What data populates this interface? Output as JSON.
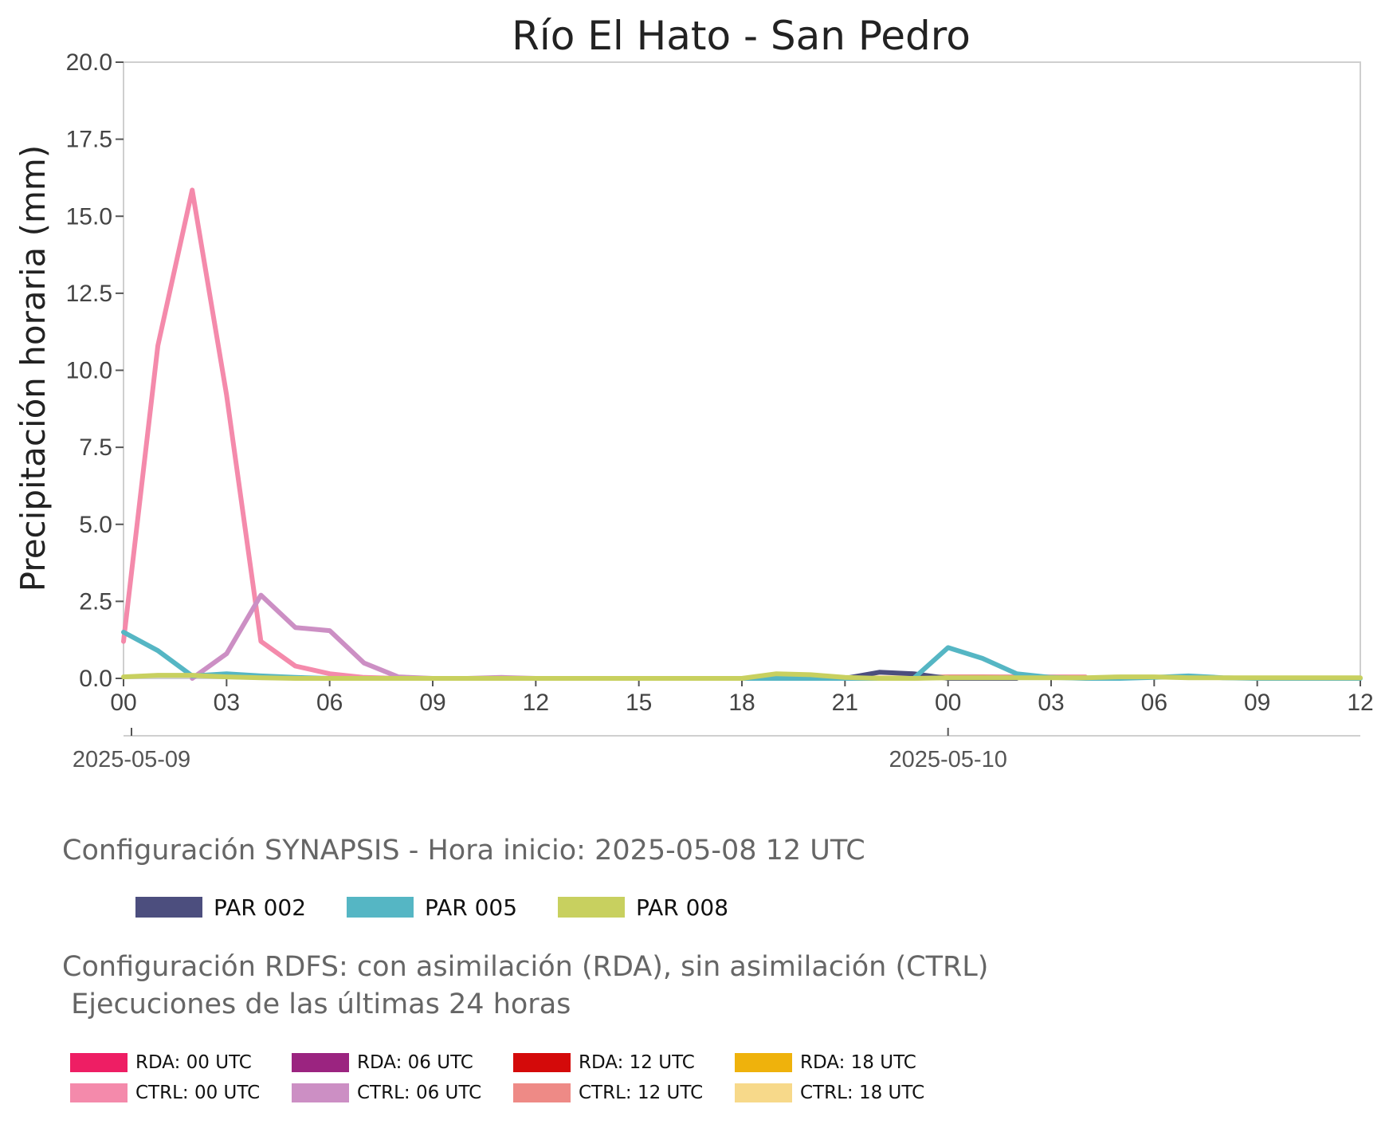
{
  "chart_data": {
    "type": "line",
    "title": "Río El Hato - San Pedro",
    "ylabel": "Precipitación horaria (mm)",
    "xlabel": "",
    "ylim": [
      0,
      20
    ],
    "yticks": [
      "0.0",
      "2.5",
      "5.0",
      "7.5",
      "10.0",
      "12.5",
      "15.0",
      "17.5",
      "20.0"
    ],
    "xlim_hours": [
      0,
      36
    ],
    "xtick_labels": [
      "00",
      "03",
      "06",
      "09",
      "12",
      "15",
      "18",
      "21",
      "00",
      "03",
      "06",
      "09",
      "12"
    ],
    "date_labels": [
      "2025-05-09",
      "2025-05-10"
    ],
    "grid": false,
    "series": [
      {
        "name": "CTRL: 00 UTC",
        "color": "#f48aab",
        "x": [
          0,
          1,
          2,
          3,
          4,
          5,
          6,
          7,
          8,
          9,
          10,
          11,
          12,
          13,
          14,
          15,
          16,
          17,
          18,
          19,
          20,
          21,
          22,
          23,
          24,
          25,
          26,
          27,
          28
        ],
        "values": [
          1.2,
          10.8,
          15.85,
          9.2,
          1.2,
          0.4,
          0.15,
          0.03,
          0,
          0,
          0,
          0,
          0,
          0,
          0,
          0,
          0,
          0,
          0,
          0,
          0,
          0,
          0,
          0,
          0.05,
          0.05,
          0.05,
          0.05,
          0.05
        ]
      },
      {
        "name": "CTRL: 06 UTC",
        "color": "#cc8fc4",
        "x": [
          2,
          3,
          4,
          5,
          6,
          7,
          8,
          9,
          10,
          11,
          12,
          13,
          14,
          15,
          16
        ],
        "values": [
          0,
          0.8,
          2.7,
          1.65,
          1.55,
          0.5,
          0.05,
          0,
          0,
          0.03,
          0,
          0,
          0,
          0,
          0
        ]
      },
      {
        "name": "CTRL: 12 UTC",
        "color": "#ee8a86",
        "x": [
          16,
          17,
          18,
          19,
          20,
          21,
          22,
          23,
          24,
          25,
          26,
          27,
          28
        ],
        "values": [
          0,
          0,
          0,
          0,
          0,
          0,
          0,
          0.03,
          0.05,
          0.05,
          0.03,
          0.03,
          0.03
        ]
      },
      {
        "name": "CTRL: 18 UTC",
        "color": "#f7d98a",
        "x": [
          18,
          19,
          20,
          21,
          22,
          23,
          24
        ],
        "values": [
          0,
          0.08,
          0.06,
          0.02,
          0.02,
          0.02,
          0.02
        ]
      },
      {
        "name": "PAR 002",
        "color": "#4c4e7e",
        "x": [
          18,
          19,
          20,
          21,
          22,
          23,
          24,
          25,
          26
        ],
        "values": [
          0,
          0,
          0,
          0,
          0.2,
          0.15,
          0,
          0,
          0
        ]
      },
      {
        "name": "PAR 005",
        "color": "#55b6c4",
        "x": [
          0,
          1,
          2,
          3,
          4,
          5,
          6,
          7,
          8,
          9,
          10,
          11,
          12,
          13,
          14,
          15,
          16,
          17,
          18,
          19,
          20,
          21,
          22,
          23,
          24,
          25,
          26,
          27,
          28,
          29,
          30,
          31,
          32,
          33,
          34,
          35,
          36
        ],
        "values": [
          1.5,
          0.9,
          0.08,
          0.15,
          0.08,
          0.03,
          0,
          0,
          0,
          0,
          0,
          0,
          0,
          0,
          0,
          0,
          0,
          0,
          0,
          0,
          0,
          0,
          0,
          0,
          1.0,
          0.65,
          0.15,
          0.03,
          0,
          0,
          0.03,
          0.08,
          0.02,
          0,
          0,
          0,
          0
        ]
      },
      {
        "name": "PAR 008",
        "color": "#c8d05f",
        "x": [
          0,
          1,
          2,
          3,
          4,
          5,
          6,
          7,
          8,
          9,
          10,
          11,
          12,
          13,
          14,
          15,
          16,
          17,
          18,
          19,
          20,
          21,
          22,
          23,
          24,
          25,
          26,
          27,
          28,
          29,
          30,
          31,
          32,
          33,
          34,
          35,
          36
        ],
        "values": [
          0.05,
          0.1,
          0.1,
          0.05,
          0.02,
          0,
          0,
          0,
          0,
          0,
          0,
          0,
          0,
          0,
          0,
          0,
          0,
          0,
          0,
          0.15,
          0.12,
          0.03,
          0,
          0,
          0.02,
          0.02,
          0.02,
          0.02,
          0.02,
          0.05,
          0.05,
          0.02,
          0.02,
          0.02,
          0.02,
          0.02,
          0.02
        ]
      }
    ]
  },
  "synapsis": {
    "heading": "Configuración SYNAPSIS - Hora inicio: 2025-05-08 12 UTC",
    "items": [
      {
        "label": "PAR 002",
        "color": "#4c4e7e"
      },
      {
        "label": "PAR 005",
        "color": "#55b6c4"
      },
      {
        "label": "PAR 008",
        "color": "#c8d05f"
      }
    ]
  },
  "rdfs": {
    "heading": "Configuración RDFS: con asimilación (RDA), sin asimilación (CTRL)\n Ejecuciones de las últimas 24 horas",
    "items": [
      {
        "label": "RDA: 00 UTC",
        "color": "#ee1e64"
      },
      {
        "label": "RDA: 06 UTC",
        "color": "#9b2480"
      },
      {
        "label": "RDA: 12 UTC",
        "color": "#d40a0a"
      },
      {
        "label": "RDA: 18 UTC",
        "color": "#efb20c"
      },
      {
        "label": "CTRL: 00 UTC",
        "color": "#f48aab"
      },
      {
        "label": "CTRL: 06 UTC",
        "color": "#cc8fc4"
      },
      {
        "label": "CTRL: 12 UTC",
        "color": "#ee8a86"
      },
      {
        "label": "CTRL: 18 UTC",
        "color": "#f7d98a"
      }
    ]
  }
}
